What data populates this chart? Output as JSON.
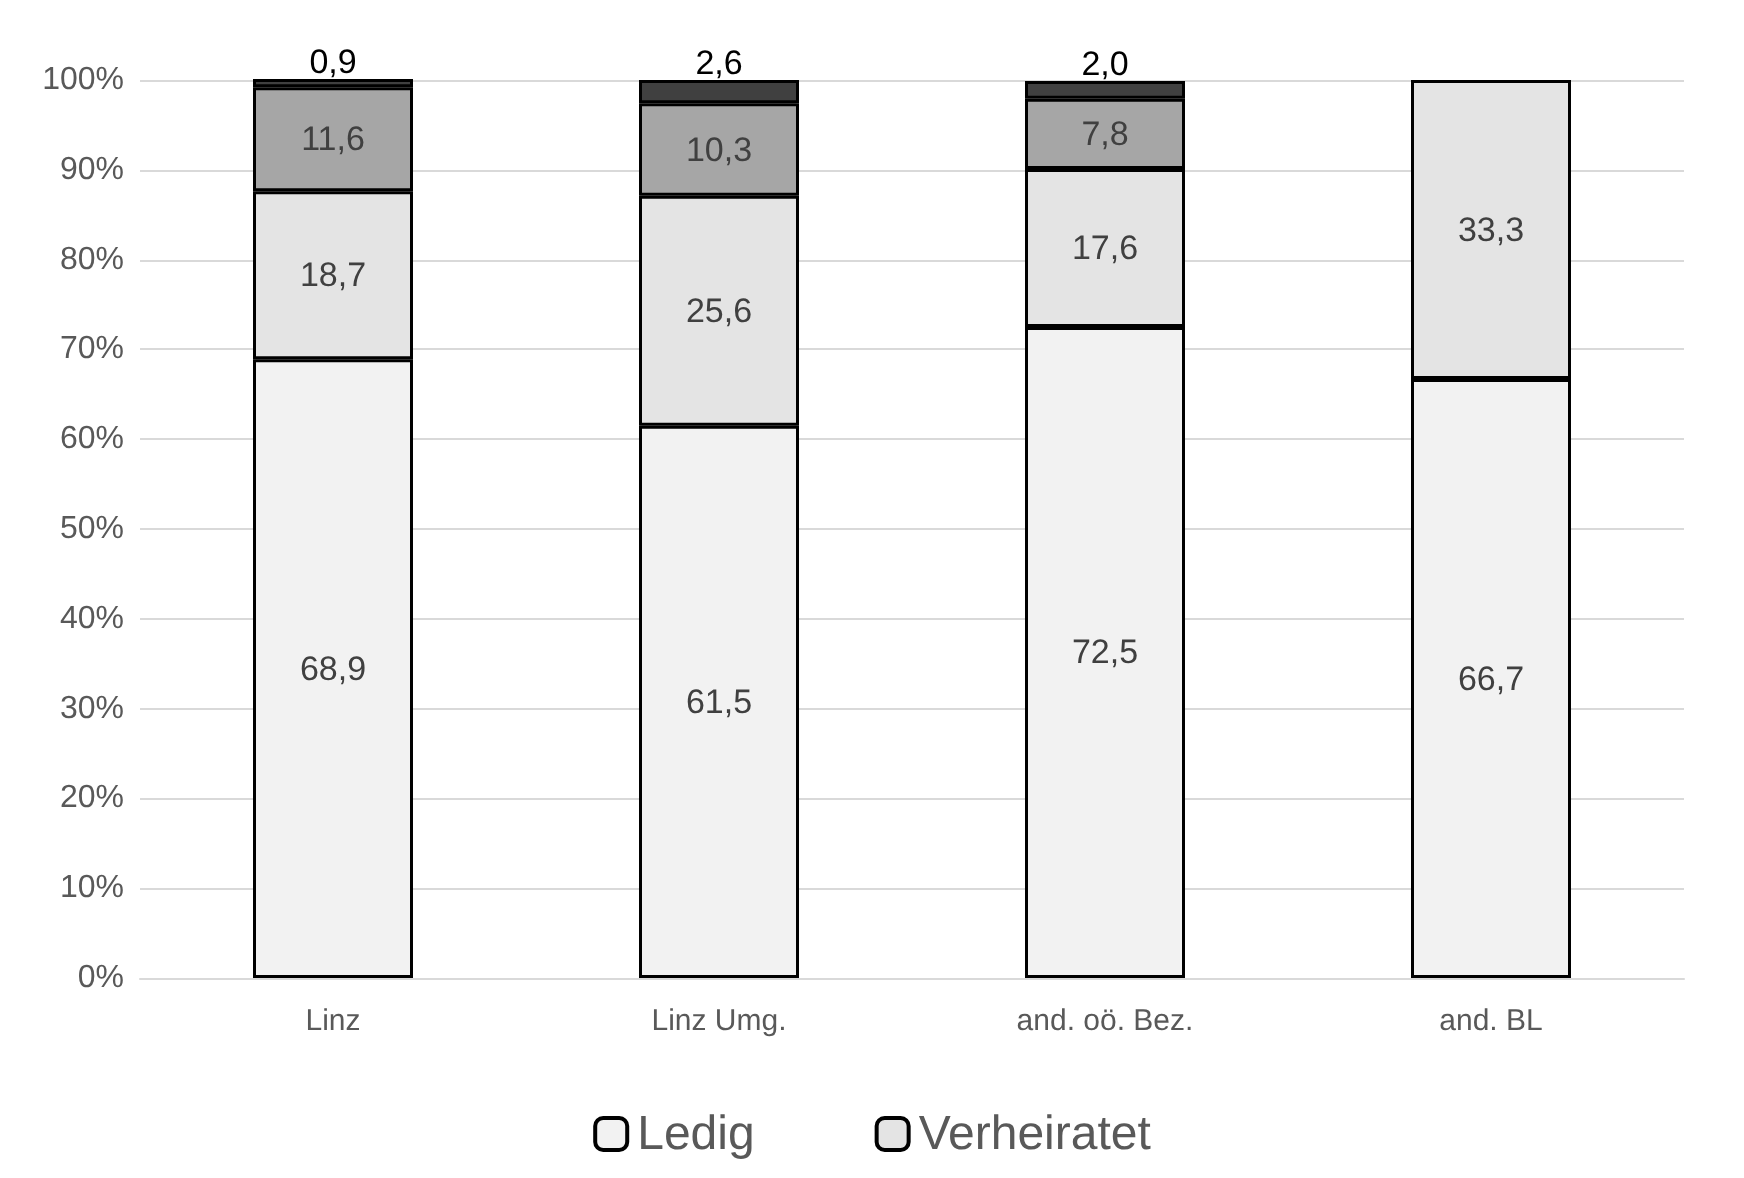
{
  "chart_data": {
    "type": "bar",
    "stacked": true,
    "categories": [
      "Linz",
      "Linz Umg.",
      "and. oö. Bez.",
      "and. BL"
    ],
    "series": [
      {
        "name": "Ledig",
        "color": "#f2f2f2",
        "values": [
          68.9,
          61.5,
          72.5,
          66.7
        ],
        "value_labels": [
          "68,9",
          "61,5",
          "72,5",
          "66,7"
        ]
      },
      {
        "name": "Verheiratet",
        "color": "#e4e4e4",
        "values": [
          18.7,
          25.6,
          17.6,
          33.3
        ],
        "value_labels": [
          "18,7",
          "25,6",
          "17,6",
          "33,3"
        ]
      },
      {
        "color": "#a6a6a6",
        "values": [
          11.6,
          10.3,
          7.8,
          null
        ],
        "value_labels": [
          "11,6",
          "10,3",
          "7,8",
          null
        ]
      },
      {
        "color": "#404040",
        "values": [
          0.9,
          2.6,
          2.0,
          null
        ],
        "value_labels": [
          "0,9",
          "2,6",
          "2,0",
          null
        ]
      }
    ],
    "ylim": [
      0,
      100
    ],
    "yticks": [
      {
        "value": 0,
        "label": "0%"
      },
      {
        "value": 10,
        "label": "10%"
      },
      {
        "value": 20,
        "label": "20%"
      },
      {
        "value": 30,
        "label": "30%"
      },
      {
        "value": 40,
        "label": "40%"
      },
      {
        "value": 50,
        "label": "50%"
      },
      {
        "value": 60,
        "label": "60%"
      },
      {
        "value": 70,
        "label": "70%"
      },
      {
        "value": 80,
        "label": "80%"
      },
      {
        "value": 90,
        "label": "90%"
      },
      {
        "value": 100,
        "label": "100%"
      }
    ],
    "grid": "y",
    "legend": "bottom"
  }
}
